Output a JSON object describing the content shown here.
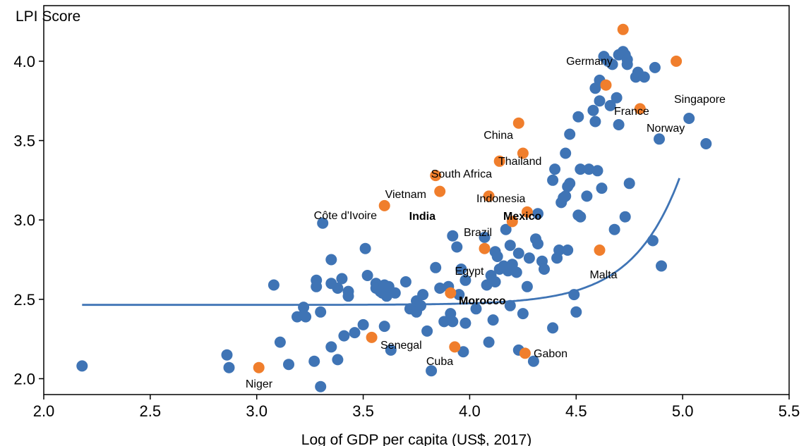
{
  "chart_data": {
    "type": "scatter",
    "title": "",
    "xlabel": "Log of GDP per capita (US$, 2017)",
    "ylabel": "LPI Score",
    "xlim": [
      2.0,
      5.5
    ],
    "ylim": [
      1.9,
      4.35
    ],
    "x_ticks": [
      "2.0",
      "2.5",
      "3.0",
      "3.5",
      "4.0",
      "4.5",
      "5.0",
      "5.5"
    ],
    "y_ticks": [
      "2.0",
      "2.5",
      "3.0",
      "3.5",
      "4.0"
    ],
    "grid": false,
    "legend": "none",
    "colors": {
      "others": "#3f74b5",
      "highlighted": "#f07e2c",
      "trend": "#3f74b5"
    },
    "series": [
      {
        "points": [
          [
            2.18,
            2.08
          ],
          [
            2.86,
            2.15
          ],
          [
            2.87,
            2.07
          ],
          [
            3.08,
            2.59
          ],
          [
            3.11,
            2.23
          ],
          [
            3.15,
            2.09
          ],
          [
            3.19,
            2.39
          ],
          [
            3.22,
            2.4
          ],
          [
            3.22,
            2.45
          ],
          [
            3.23,
            2.39
          ],
          [
            3.27,
            2.11
          ],
          [
            3.28,
            2.62
          ],
          [
            3.28,
            2.58
          ],
          [
            3.3,
            2.42
          ],
          [
            3.3,
            1.95
          ],
          [
            3.31,
            2.98
          ],
          [
            3.35,
            2.6
          ],
          [
            3.35,
            2.2
          ],
          [
            3.35,
            2.75
          ],
          [
            3.38,
            2.12
          ],
          [
            3.38,
            2.57
          ],
          [
            3.4,
            2.63
          ],
          [
            3.41,
            2.27
          ],
          [
            3.43,
            2.55
          ],
          [
            3.43,
            2.52
          ],
          [
            3.46,
            2.29
          ],
          [
            3.5,
            2.34
          ],
          [
            3.51,
            2.82
          ],
          [
            3.52,
            2.65
          ],
          [
            3.56,
            2.6
          ],
          [
            3.56,
            2.57
          ],
          [
            3.58,
            2.55
          ],
          [
            3.59,
            2.54
          ],
          [
            3.6,
            2.33
          ],
          [
            3.6,
            2.59
          ],
          [
            3.61,
            2.54
          ],
          [
            3.61,
            2.52
          ],
          [
            3.62,
            2.58
          ],
          [
            3.63,
            2.18
          ],
          [
            3.65,
            2.54
          ],
          [
            3.7,
            2.61
          ],
          [
            3.72,
            2.44
          ],
          [
            3.75,
            2.49
          ],
          [
            3.75,
            2.42
          ],
          [
            3.77,
            2.46
          ],
          [
            3.78,
            2.53
          ],
          [
            3.8,
            2.3
          ],
          [
            3.82,
            2.05
          ],
          [
            3.84,
            2.7
          ],
          [
            3.86,
            2.57
          ],
          [
            3.88,
            2.36
          ],
          [
            3.9,
            2.58
          ],
          [
            3.91,
            2.41
          ],
          [
            3.92,
            2.9
          ],
          [
            3.92,
            2.36
          ],
          [
            3.94,
            2.83
          ],
          [
            3.95,
            2.53
          ],
          [
            3.96,
            2.69
          ],
          [
            3.97,
            2.17
          ],
          [
            3.98,
            2.35
          ],
          [
            3.98,
            2.62
          ],
          [
            4.03,
            2.44
          ],
          [
            4.07,
            2.89
          ],
          [
            4.08,
            2.59
          ],
          [
            4.09,
            2.23
          ],
          [
            4.1,
            2.65
          ],
          [
            4.11,
            2.37
          ],
          [
            4.12,
            2.61
          ],
          [
            4.12,
            2.8
          ],
          [
            4.13,
            2.77
          ],
          [
            4.14,
            2.69
          ],
          [
            4.16,
            2.71
          ],
          [
            4.17,
            2.94
          ],
          [
            4.18,
            2.68
          ],
          [
            4.19,
            2.84
          ],
          [
            4.19,
            2.46
          ],
          [
            4.2,
            2.72
          ],
          [
            4.22,
            2.67
          ],
          [
            4.23,
            2.79
          ],
          [
            4.23,
            2.18
          ],
          [
            4.25,
            2.41
          ],
          [
            4.27,
            2.58
          ],
          [
            4.28,
            2.76
          ],
          [
            4.3,
            2.11
          ],
          [
            4.31,
            2.88
          ],
          [
            4.32,
            2.85
          ],
          [
            4.32,
            3.04
          ],
          [
            4.34,
            2.74
          ],
          [
            4.35,
            2.69
          ],
          [
            4.39,
            2.32
          ],
          [
            4.39,
            3.25
          ],
          [
            4.4,
            3.32
          ],
          [
            4.41,
            2.76
          ],
          [
            4.42,
            2.81
          ],
          [
            4.43,
            3.11
          ],
          [
            4.44,
            3.14
          ],
          [
            4.45,
            3.15
          ],
          [
            4.45,
            3.42
          ],
          [
            4.46,
            3.21
          ],
          [
            4.46,
            2.81
          ],
          [
            4.47,
            3.23
          ],
          [
            4.47,
            3.54
          ],
          [
            4.49,
            2.53
          ],
          [
            4.5,
            2.42
          ],
          [
            4.51,
            3.65
          ],
          [
            4.51,
            3.03
          ],
          [
            4.52,
            3.32
          ],
          [
            4.52,
            3.02
          ],
          [
            4.55,
            3.15
          ],
          [
            4.56,
            3.32
          ],
          [
            4.58,
            3.69
          ],
          [
            4.59,
            3.83
          ],
          [
            4.59,
            3.62
          ],
          [
            4.6,
            3.31
          ],
          [
            4.61,
            3.88
          ],
          [
            4.61,
            3.75
          ],
          [
            4.62,
            3.2
          ],
          [
            4.63,
            4.03
          ],
          [
            4.65,
            4.0
          ],
          [
            4.66,
            3.72
          ],
          [
            4.67,
            3.98
          ],
          [
            4.68,
            2.94
          ],
          [
            4.69,
            3.77
          ],
          [
            4.7,
            3.6
          ],
          [
            4.7,
            4.04
          ],
          [
            4.72,
            4.06
          ],
          [
            4.73,
            4.04
          ],
          [
            4.73,
            3.02
          ],
          [
            4.74,
            4.01
          ],
          [
            4.74,
            3.98
          ],
          [
            4.75,
            3.23
          ],
          [
            4.78,
            3.9
          ],
          [
            4.79,
            3.93
          ],
          [
            4.82,
            3.9
          ],
          [
            4.86,
            2.87
          ],
          [
            4.87,
            3.96
          ],
          [
            4.89,
            3.51
          ],
          [
            4.9,
            2.71
          ],
          [
            5.03,
            3.64
          ],
          [
            5.11,
            3.48
          ]
        ]
      },
      {
        "points": [
          [
            3.01,
            2.07
          ],
          [
            3.54,
            2.26
          ],
          [
            3.6,
            3.09
          ],
          [
            3.84,
            3.28
          ],
          [
            3.86,
            3.18
          ],
          [
            3.91,
            2.54
          ],
          [
            3.93,
            2.2
          ],
          [
            4.07,
            2.82
          ],
          [
            4.09,
            3.15
          ],
          [
            4.14,
            3.37
          ],
          [
            4.2,
            2.99
          ],
          [
            4.23,
            3.61
          ],
          [
            4.25,
            3.42
          ],
          [
            4.26,
            2.16
          ],
          [
            4.27,
            3.05
          ],
          [
            4.61,
            2.81
          ],
          [
            4.64,
            3.85
          ],
          [
            4.72,
            4.2
          ],
          [
            4.8,
            3.7
          ],
          [
            4.97,
            4.0
          ]
        ]
      }
    ],
    "trend": {
      "x": [
        2.18,
        4.985
      ],
      "formula": "2.465 + 0.09 * exp(4.5 * (x - 4.5))"
    },
    "annotations": [
      {
        "text": "Germany",
        "bold": false
      },
      {
        "text": "Singapore",
        "bold": false
      },
      {
        "text": "France",
        "bold": false
      },
      {
        "text": "Norway",
        "bold": false
      },
      {
        "text": "China",
        "bold": false
      },
      {
        "text": "Thailand",
        "bold": false
      },
      {
        "text": "South Africa",
        "bold": false
      },
      {
        "text": "Vietnam",
        "bold": false
      },
      {
        "text": "Indonesia",
        "bold": false
      },
      {
        "text": "Côte d'Ivoire",
        "bold": false
      },
      {
        "text": "India",
        "bold": true
      },
      {
        "text": "Mexico",
        "bold": true
      },
      {
        "text": "Brazil",
        "bold": false
      },
      {
        "text": "Egypt",
        "bold": false
      },
      {
        "text": "Malta",
        "bold": false
      },
      {
        "text": "Morocco",
        "bold": true
      },
      {
        "text": "Senegal",
        "bold": false
      },
      {
        "text": "Cuba",
        "bold": false
      },
      {
        "text": "Gabon",
        "bold": false
      },
      {
        "text": "Niger",
        "bold": false
      }
    ]
  }
}
